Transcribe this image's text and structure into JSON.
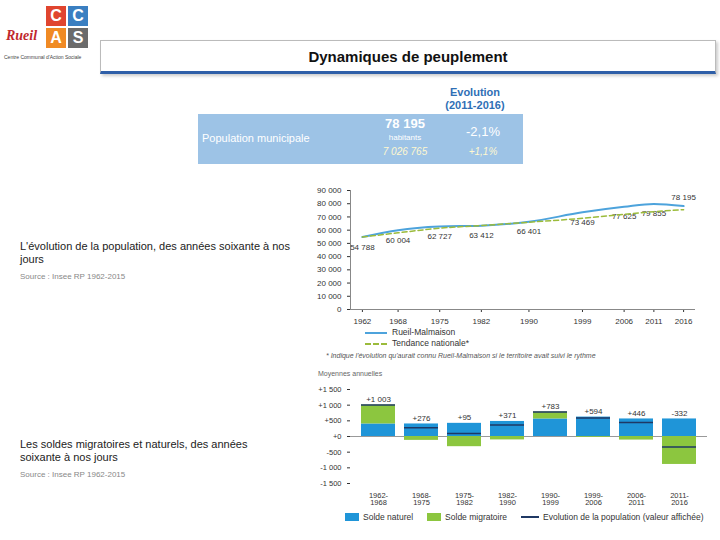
{
  "slide": {
    "logo": {
      "letters": [
        "C",
        "C",
        "A",
        "S"
      ],
      "city": "Rueil",
      "subtitle": "Centre Communal d'Action Sociale"
    },
    "title": "Dynamiques de peuplement",
    "info_table": {
      "header": [
        "Evolution",
        "(2011-2016)"
      ],
      "label": "Population municipale",
      "rows": [
        {
          "population": "78 195",
          "unit": "habitants",
          "evolution": "-2,1%"
        },
        {
          "population": "7 026 765",
          "evolution": "+1,1%"
        }
      ]
    },
    "captions": [
      {
        "text": "L'évolution de la population, des années soixante à nos jours",
        "source": "Source : Insee RP 1962-2015"
      },
      {
        "text": "Les soldes migratoires et naturels, des années soixante à nos jours",
        "source": "Source : Insee RP 1962-2015"
      }
    ]
  },
  "chart_data": [
    {
      "type": "line",
      "x": [
        1962,
        1968,
        1975,
        1982,
        1990,
        1999,
        2006,
        2011,
        2016
      ],
      "xlim": [
        1960,
        2018
      ],
      "xticks": [
        1962,
        1968,
        1975,
        1982,
        1990,
        1999,
        2006,
        2011,
        2016
      ],
      "ylim": [
        0,
        90000
      ],
      "yticks": [
        0,
        {
          "value": 10000,
          "label": "10 000"
        },
        {
          "value": 20000,
          "label": "20 000"
        },
        {
          "value": 30000,
          "label": "30 000"
        },
        {
          "value": 40000,
          "label": "40 000"
        },
        {
          "value": 50000,
          "label": "50 000"
        },
        {
          "value": 60000,
          "label": "60 000"
        },
        {
          "value": 70000,
          "label": "70 000"
        },
        {
          "value": 80000,
          "label": "80 000"
        },
        {
          "value": 90000,
          "label": "90 000"
        }
      ],
      "grid": false,
      "legend": "bottom",
      "data_labels": true,
      "series": [
        {
          "name": "Rueil-Malmaison",
          "color": "#4da3dc",
          "line_style": "solid",
          "values": [
            54788,
            60004,
            62727,
            63412,
            66401,
            73469,
            77625,
            79855,
            78195
          ],
          "value_labels": [
            "54 788",
            "60 004",
            "62 727",
            "63 412",
            "66 401",
            "73 469",
            "77 625",
            "79 855",
            "78 195"
          ]
        },
        {
          "name": "Tendance nationale*",
          "color": "#9bbb3b",
          "line_style": "dashed",
          "values": [
            54788,
            58000,
            61500,
            63500,
            66000,
            69000,
            72000,
            74000,
            75500
          ]
        }
      ],
      "annotations": [
        "* Indique l'évolution qu'aurait connu Rueil-Malmaison si le territoire avait suivi le rythme"
      ]
    },
    {
      "type": "bar",
      "stacked": true,
      "y_label": "Moyennes annuelles",
      "categories": [
        "1962-1968",
        "1968-1975",
        "1975-1982",
        "1982-1990",
        "1990-1999",
        "1999-2006",
        "2006-2011",
        "2011-2016"
      ],
      "ylim": [
        -1500,
        1500
      ],
      "yticks": [
        {
          "value": -1500,
          "label": "-1 500"
        },
        {
          "value": -1000,
          "label": "-1 000"
        },
        -500,
        {
          "value": 0,
          "label": "+0"
        },
        {
          "value": 500,
          "label": "+500"
        },
        {
          "value": 1000,
          "label": "+1 000"
        },
        {
          "value": 1500,
          "label": "+1 500"
        }
      ],
      "grid": false,
      "legend": "bottom",
      "data_labels": true,
      "series": [
        {
          "name": "Solde naturel",
          "color": "#1f95d8",
          "values": [
            400,
            400,
            420,
            480,
            560,
            620,
            560,
            560
          ]
        },
        {
          "name": "Solde migratoire",
          "color": "#8cc63f",
          "values": [
            603,
            -124,
            -325,
            -109,
            223,
            -26,
            -114,
            -892
          ]
        },
        {
          "name": "Evolution de la population (valeur affichée)",
          "type": "tick",
          "color": "#1f3864",
          "values": [
            1003,
            276,
            95,
            371,
            783,
            594,
            446,
            -332
          ],
          "value_labels": [
            "+1 003",
            "+276",
            "+95",
            "+371",
            "+783",
            "+594",
            "+446",
            "-332"
          ]
        }
      ]
    }
  ]
}
